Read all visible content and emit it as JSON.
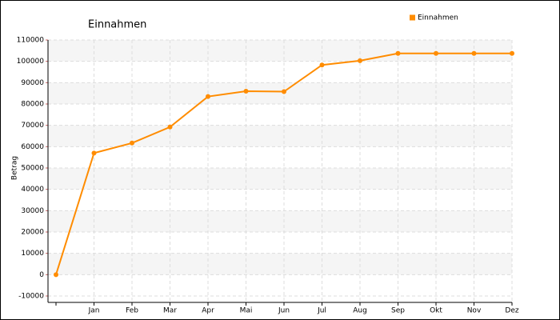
{
  "chart_data": {
    "type": "line",
    "title": "Einnahmen",
    "y_label": "Betrag",
    "categories": [
      null,
      "Jan",
      "Feb",
      "Mar",
      "Apr",
      "Mai",
      "Jun",
      "Jul",
      "Aug",
      "Sep",
      "Okt",
      "Nov",
      "Dez"
    ],
    "series": [
      {
        "name": "Einnahmen",
        "color": "#ff8c00",
        "values": [
          0,
          57000,
          61700,
          69200,
          83500,
          86000,
          85800,
          98300,
          100300,
          103700,
          103700,
          103700,
          103700
        ]
      }
    ],
    "ylim": [
      -10000,
      110000
    ],
    "yticks": [
      -10000,
      0,
      10000,
      20000,
      30000,
      40000,
      50000,
      60000,
      70000,
      80000,
      90000,
      100000,
      110000
    ],
    "grid": true,
    "legend": "top-right"
  }
}
